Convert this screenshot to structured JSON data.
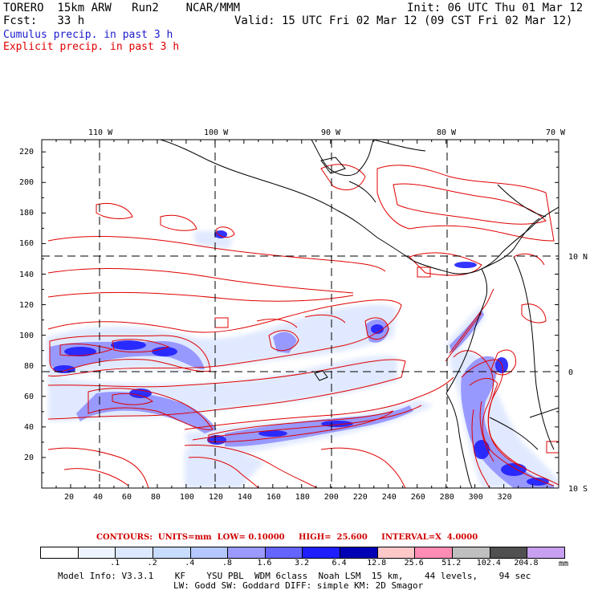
{
  "header": {
    "line1_left": "TORERO  15km ARW   Run2    NCAR/MMM",
    "line1_right": "Init: 06 UTC Thu 01 Mar 12",
    "line2_left": "Fcst:   33 h",
    "line2_right": "Valid: 15 UTC Fri 02 Mar 12 (09 CST Fri 02 Mar 12)",
    "cumulus": "Cumulus precip. in past 3 h",
    "explicit": "Explicit precip. in past 3 h"
  },
  "map": {
    "lon_labels": [
      "110 W",
      "100 W",
      "90 W",
      "80 W",
      "70 W"
    ],
    "lat_labels": [
      "10 N",
      "0",
      "10 S"
    ],
    "x_ticks": [
      "20",
      "40",
      "60",
      "80",
      "100",
      "120",
      "140",
      "160",
      "180",
      "200",
      "220",
      "240",
      "260",
      "280",
      "300",
      "320"
    ],
    "y_ticks": [
      "20",
      "40",
      "60",
      "80",
      "100",
      "120",
      "140",
      "160",
      "180",
      "200",
      "220"
    ],
    "colors": {
      "explicit_contour": "#e00000",
      "cumulus_light": "#dfe8ff",
      "cumulus_mid": "#8c8cff",
      "cumulus_strong": "#3030ff",
      "cumulus_max": "#0000c8"
    }
  },
  "contours_line": "CONTOURS:  UNITS=mm  LOW= 0.10000     HIGH=  25.600     INTERVAL=X  4.0000",
  "legend": {
    "labels": [
      ".1",
      ".2",
      ".4",
      ".8",
      "1.6",
      "3.2",
      "6.4",
      "12.8",
      "25.6",
      "51.2",
      "102.4",
      "204.8"
    ],
    "colors": [
      "#ffffff",
      "#eef4ff",
      "#dce8ff",
      "#c8dcff",
      "#b4c8ff",
      "#9a9aff",
      "#6464ff",
      "#1e1eff",
      "#0000b4",
      "#ffc8c8",
      "#ff8cb4",
      "#bfbfbf",
      "#505050",
      "#c8a0f0"
    ],
    "unit": "mm"
  },
  "model_info_1": "Model Info: V3.3.1    KF    YSU PBL  WDM 6class  Noah LSM  15 km,    44 levels,    94 sec",
  "model_info_2": "LW: Godd SW: Goddard DIFF: simple KM: 2D Smagor"
}
